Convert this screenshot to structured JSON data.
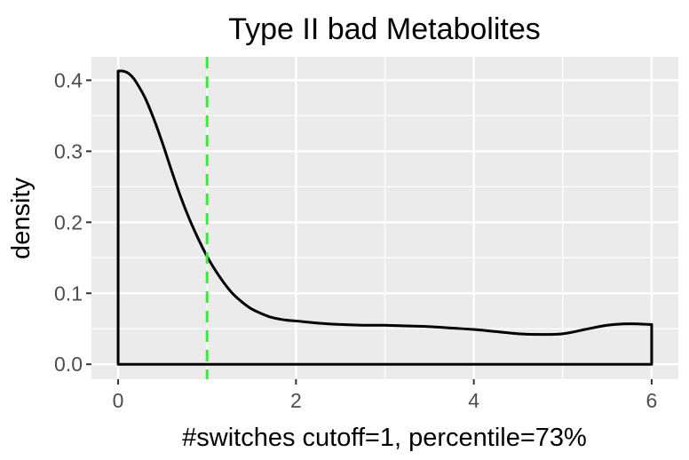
{
  "chart_data": {
    "type": "line",
    "title": "Type II bad Metabolites",
    "xlabel": "#switches cutoff=1, percentile=73%",
    "ylabel": "density",
    "xlim": [
      -0.3,
      6.3
    ],
    "ylim": [
      -0.021,
      0.433
    ],
    "x_ticks": [
      0,
      2,
      4,
      6
    ],
    "x_tick_labels": [
      "0",
      "2",
      "4",
      "6"
    ],
    "y_ticks": [
      0.0,
      0.1,
      0.2,
      0.3,
      0.4
    ],
    "y_tick_labels": [
      "0.0",
      "0.1",
      "0.2",
      "0.3",
      "0.4"
    ],
    "grid": true,
    "background": "#ebebeb",
    "grid_color": "#ffffff",
    "line_color": "#000000",
    "cutoff": {
      "x": 1,
      "color": "#33ee33",
      "style": "dashed"
    },
    "series": [
      {
        "x": [
          0,
          0.05,
          0.1,
          0.15,
          0.2,
          0.3,
          0.4,
          0.5,
          0.6,
          0.7,
          0.8,
          0.9,
          1.0,
          1.1,
          1.2,
          1.3,
          1.4,
          1.5,
          1.6,
          1.7,
          1.8,
          1.9,
          2.0,
          2.25,
          2.5,
          2.75,
          3.0,
          3.25,
          3.5,
          3.75,
          4.0,
          4.25,
          4.5,
          4.75,
          5.0,
          5.25,
          5.5,
          5.75,
          6.0
        ],
        "y": [
          0.413,
          0.413,
          0.411,
          0.406,
          0.398,
          0.376,
          0.346,
          0.311,
          0.273,
          0.237,
          0.205,
          0.177,
          0.152,
          0.131,
          0.113,
          0.098,
          0.087,
          0.078,
          0.072,
          0.067,
          0.064,
          0.062,
          0.061,
          0.058,
          0.056,
          0.055,
          0.055,
          0.054,
          0.053,
          0.051,
          0.049,
          0.046,
          0.043,
          0.042,
          0.043,
          0.049,
          0.055,
          0.057,
          0.056
        ]
      }
    ]
  }
}
